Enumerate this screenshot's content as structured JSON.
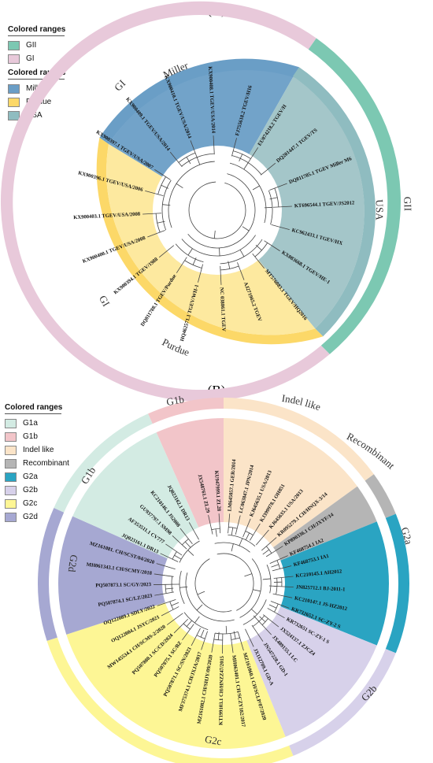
{
  "panelA": {
    "label": "(A)",
    "legend": [
      {
        "header": "Colored ranges",
        "items": [
          {
            "label": "GII",
            "color": "#7cc8b2"
          },
          {
            "label": "GI",
            "color": "#e8c9da"
          }
        ]
      },
      {
        "header": "Colored ranges",
        "items": [
          {
            "label": "Miller",
            "color": "#6a9ec6"
          },
          {
            "label": "Purdue",
            "color": "#fcd868"
          },
          {
            "label": "USA",
            "color": "#8fbcc0"
          }
        ]
      }
    ],
    "outer_labels": {
      "gi_top": "GI",
      "gi_bottom": "GI",
      "gii": "GII"
    },
    "inner_labels": {
      "miller": "Miller",
      "usa": "USA",
      "purdue": "Purdue"
    },
    "taxa": [
      "FJ755618.2 TGEV/H16",
      "EU074218.2 TGEV/H",
      "DQ201447.1 TGEV/TS",
      "DQ811785.1 TGEV Miller M6",
      "KT696544.1 TGEV/JS2012",
      "KC962433.1 TGEV/HX",
      "KX083668.1 TGEV/HE-1",
      "MT576083.1 TGEV/HQ2016",
      "AJ271965.2 TGEV",
      "NC 038861.1 TGEV",
      "HQ462571.1 TGEV/WH-1",
      "DQ811788.1 TGEV/Purdue",
      "KX900394.1 TGEV/1988",
      "KX900400.1 TGEV/USA/2008",
      "KX900403.1 TGEV/USA/2008",
      "KX900396.1 TGEV/USA/2006",
      "KX900397.1 TGEV/USA/2007",
      "KX900409.1 TGEV/USA/2014",
      "KX900410.1 TGEV/USA/2014",
      "KX900408.1 TGEV/USA/2014"
    ]
  },
  "panelB": {
    "label": "(B)",
    "legend": [
      {
        "header": "Colored ranges",
        "items": [
          {
            "label": "G1a",
            "color": "#d3ebe3"
          },
          {
            "label": "G1b",
            "color": "#f2c5c9"
          },
          {
            "label": "Indel like",
            "color": "#fbe4c8"
          },
          {
            "label": "Recombinant",
            "color": "#b5b5b5"
          },
          {
            "label": "G2a",
            "color": "#2aa4c2"
          },
          {
            "label": "G2b",
            "color": "#d7d1ea"
          },
          {
            "label": "G2c",
            "color": "#fdf695"
          },
          {
            "label": "G2d",
            "color": "#a6a8d2"
          }
        ]
      }
    ],
    "outer_labels": {
      "g1b_top": "G1b",
      "indel": "Indel like",
      "recombinant": "Recombinant",
      "g2a": "G2a",
      "g2b": "G2b",
      "g2c": "G2c",
      "g2d": "G2d",
      "g1b_left": "G1b"
    },
    "taxa": [
      "JX548761.1 ZL29",
      "KU947999.1 ZL28",
      "LM645057.1 GER/2014",
      "LC063847.1 JPN/2014",
      "KJ645635.1 USA/2013",
      "KJ399978.1 OH851",
      "KJ645635.1 USA/2013",
      "KR095279.1 CH/HNQX-3/14",
      "KP890336.1 CH/JXYF/14",
      "KF468754.1 IA2",
      "KF468753.1 IA1",
      "KC210145.1 AH2012",
      "JN825712.1 BJ-2011-1",
      "KC210147.1 JS-HZ2012",
      "KR732652.1 SC-ZY-2 S",
      "KR732651 SC-ZY-1 S",
      "JX524137.1 ZJCZ4",
      "JX489155.1 LC",
      "JN547228.1 GD-1",
      "JX112709.1 GD-A",
      "MZ161060.1 CH/SCLP/07/2020",
      "MH063401.1 CH/SCZY182/2017",
      "KT199103.1 CH/HNZZ47/2015",
      "MZ161082.1 CH/SHJY/09/2020",
      "MF375374.1 CH/JXJA/2017",
      "PQ507871.1 SC/SN/2023",
      "PQ507875.1 SC/BZ",
      "PQ507880.1 SC/CD/2024",
      "MW145534.1 CH/SCMS-2/2020",
      "OQ122084.1 JSYC/2021",
      "OQ122089.1 SDLY/2022",
      "PQ507874.1 SC/LZ/2023",
      "PQ507873.1 SC/GY/2023",
      "MH061343.1 CH/SCMY/2018",
      "MZ161081. CH/SCST/04/2020",
      "JQ023161.1 DR13",
      "AF353511.1 CV777",
      "GU937797.1 SM98",
      "KC210146.1 JS2008",
      "JQ023162.1 DR13"
    ]
  }
}
